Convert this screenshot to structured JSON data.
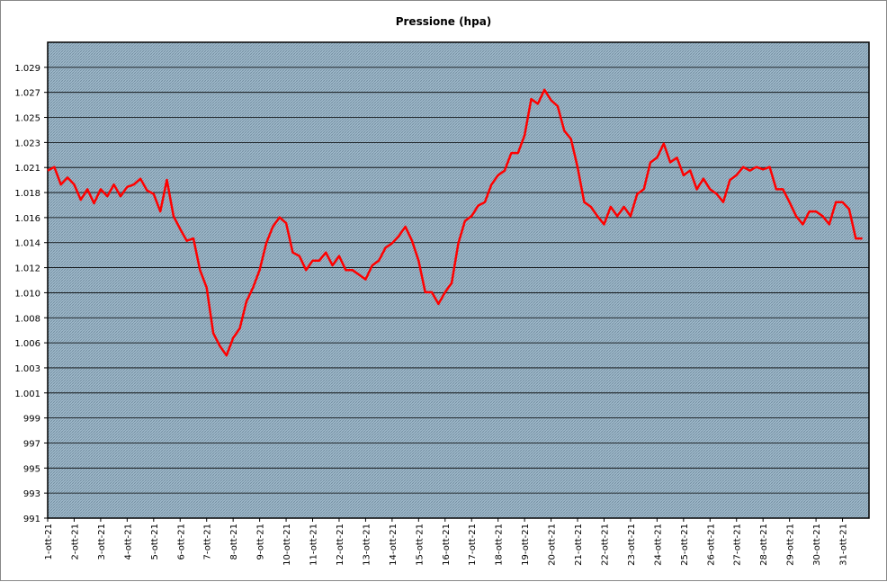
{
  "chart_data": {
    "type": "line",
    "title": "Pressione (hpa)",
    "categories": [
      "1-ott-21",
      null,
      null,
      null,
      "2-ott-21",
      null,
      null,
      null,
      "3-ott-21",
      null,
      null,
      null,
      "4-ott-21",
      null,
      null,
      null,
      "5-ott-21",
      null,
      null,
      null,
      "6-ott-21",
      null,
      null,
      null,
      "7-ott-21",
      null,
      null,
      null,
      "8-ott-21",
      null,
      null,
      null,
      "9-ott-21",
      null,
      null,
      null,
      "10-ott-21",
      null,
      null,
      null,
      "11-ott-21",
      null,
      null,
      null,
      "12-ott-21",
      null,
      null,
      null,
      "13-ott-21",
      null,
      null,
      null,
      "14-ott-21",
      null,
      null,
      null,
      "15-ott-21",
      null,
      null,
      null,
      "16-ott-21",
      null,
      null,
      null,
      "17-ott-21",
      null,
      null,
      null,
      "18-ott-21",
      null,
      null,
      null,
      "19-ott-21",
      null,
      null,
      null,
      "20-ott-21",
      null,
      null,
      null,
      "21-ott-21",
      null,
      null,
      null,
      "22-ott-21",
      null,
      null,
      null,
      "23-ott-21",
      null,
      null,
      null,
      "24-ott-21",
      null,
      null,
      null,
      "25-ott-21",
      null,
      null,
      null,
      "26-ott-21",
      null,
      null,
      null,
      "27-ott-21",
      null,
      null,
      null,
      "28-ott-21",
      null,
      null,
      null,
      "29-ott-21",
      null,
      null,
      null,
      "30-ott-21",
      null,
      null,
      null,
      "31-ott-21",
      null,
      null,
      null
    ],
    "values": [
      1020.3,
      1020.6,
      1019.1,
      1019.7,
      1019.1,
      1017.8,
      1018.7,
      1017.5,
      1018.7,
      1018.1,
      1019.1,
      1018.1,
      1018.9,
      1019.1,
      1019.6,
      1018.6,
      1018.3,
      1016.8,
      1019.5,
      1016.4,
      1015.3,
      1014.3,
      1014.5,
      1011.8,
      1010.3,
      1006.4,
      1005.3,
      1004.5,
      1006.0,
      1006.8,
      1009.1,
      1010.3,
      1011.8,
      1014.1,
      1015.5,
      1016.3,
      1015.8,
      1013.3,
      1013.0,
      1011.8,
      1012.6,
      1012.6,
      1013.3,
      1012.2,
      1013.0,
      1011.8,
      1011.8,
      1011.4,
      1011.0,
      1012.2,
      1012.6,
      1013.7,
      1014.1,
      1014.7,
      1015.5,
      1014.3,
      1012.6,
      1009.9,
      1009.9,
      1008.9,
      1009.9,
      1010.7,
      1014.1,
      1016.0,
      1016.4,
      1017.3,
      1017.6,
      1019.1,
      1019.9,
      1020.3,
      1021.8,
      1021.8,
      1023.3,
      1026.4,
      1026.0,
      1027.2,
      1026.3,
      1025.8,
      1023.7,
      1023.0,
      1020.6,
      1017.6,
      1017.2,
      1016.4,
      1015.7,
      1017.2,
      1016.4,
      1017.2,
      1016.4,
      1018.3,
      1018.7,
      1021.0,
      1021.4,
      1022.6,
      1021.0,
      1021.4,
      1019.9,
      1020.3,
      1018.7,
      1019.6,
      1018.7,
      1018.3,
      1017.6,
      1019.5,
      1019.9,
      1020.6,
      1020.3,
      1020.6,
      1020.4,
      1020.6,
      1018.7,
      1018.7,
      1017.6,
      1016.4,
      1015.7,
      1016.8,
      1016.8,
      1016.4,
      1015.7,
      1017.6,
      1017.6,
      1017.0,
      1014.5,
      1014.5
    ],
    "color": "#ff0000",
    "ylim": [
      990.6,
      1031.26
    ],
    "yticks": [
      {
        "value": 990.6,
        "label": "991"
      },
      {
        "value": 992.74,
        "label": "993"
      },
      {
        "value": 994.88,
        "label": "995"
      },
      {
        "value": 997.02,
        "label": "997"
      },
      {
        "value": 999.16,
        "label": "999"
      },
      {
        "value": 1001.3,
        "label": "1.001"
      },
      {
        "value": 1003.44,
        "label": "1.003"
      },
      {
        "value": 1005.58,
        "label": "1.006"
      },
      {
        "value": 1007.72,
        "label": "1.008"
      },
      {
        "value": 1009.86,
        "label": "1.010"
      },
      {
        "value": 1012.0,
        "label": "1.012"
      },
      {
        "value": 1014.14,
        "label": "1.014"
      },
      {
        "value": 1016.28,
        "label": "1.016"
      },
      {
        "value": 1018.42,
        "label": "1.018"
      },
      {
        "value": 1020.56,
        "label": "1.021"
      },
      {
        "value": 1022.7,
        "label": "1.023"
      },
      {
        "value": 1024.84,
        "label": "1.025"
      },
      {
        "value": 1026.98,
        "label": "1.027"
      },
      {
        "value": 1029.12,
        "label": "1.029"
      }
    ],
    "grid": true
  }
}
